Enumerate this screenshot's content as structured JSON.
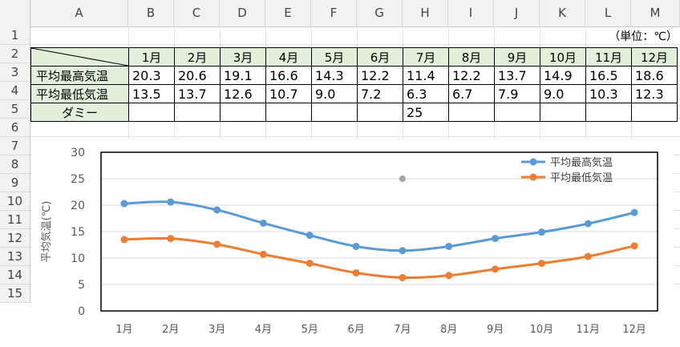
{
  "columns": [
    "A",
    "B",
    "C",
    "D",
    "E",
    "F",
    "G",
    "H",
    "I",
    "J",
    "K",
    "L",
    "M"
  ],
  "rows": [
    "1",
    "2",
    "3",
    "4",
    "5",
    "6",
    "7",
    "8",
    "9",
    "10",
    "11",
    "12",
    "13",
    "14",
    "15"
  ],
  "unit_note": "（単位：℃）",
  "table": {
    "months": [
      "1月",
      "2月",
      "3月",
      "4月",
      "5月",
      "6月",
      "7月",
      "8月",
      "9月",
      "10月",
      "11月",
      "12月"
    ],
    "row_labels": [
      "平均最高気温",
      "平均最低気温",
      "ダミー"
    ],
    "high": [
      "20.3",
      "20.6",
      "19.1",
      "16.6",
      "14.3",
      "12.2",
      "11.4",
      "12.2",
      "13.7",
      "14.9",
      "16.5",
      "18.6"
    ],
    "low": [
      "13.5",
      "13.7",
      "12.6",
      "10.7",
      "9.0",
      "7.2",
      "6.3",
      "6.7",
      "7.9",
      "9.0",
      "10.3",
      "12.3"
    ],
    "dummy": [
      "",
      "",
      "",
      "",
      "",
      "",
      "25",
      "",
      "",
      "",
      "",
      ""
    ]
  },
  "chart_data": {
    "type": "line",
    "categories": [
      "1月",
      "2月",
      "3月",
      "4月",
      "5月",
      "6月",
      "7月",
      "8月",
      "9月",
      "10月",
      "11月",
      "12月"
    ],
    "series": [
      {
        "name": "平均最高気温",
        "color": "#5b9bd5",
        "values": [
          20.3,
          20.6,
          19.1,
          16.6,
          14.3,
          12.2,
          11.4,
          12.2,
          13.7,
          14.9,
          16.5,
          18.6
        ]
      },
      {
        "name": "平均最低気温",
        "color": "#ed7d31",
        "values": [
          13.5,
          13.7,
          12.6,
          10.7,
          9.0,
          7.2,
          6.3,
          6.7,
          7.9,
          9.0,
          10.3,
          12.3
        ]
      },
      {
        "name": "",
        "color": "#a5a5a5",
        "values": [
          null,
          null,
          null,
          null,
          null,
          null,
          25,
          null,
          null,
          null,
          null,
          null
        ]
      }
    ],
    "ylabel": "平均気温(℃)",
    "yticks": [
      "0",
      "5",
      "10",
      "15",
      "20",
      "25",
      "30"
    ],
    "ylim": [
      0,
      30
    ],
    "grid": true,
    "legend": "top-right"
  }
}
